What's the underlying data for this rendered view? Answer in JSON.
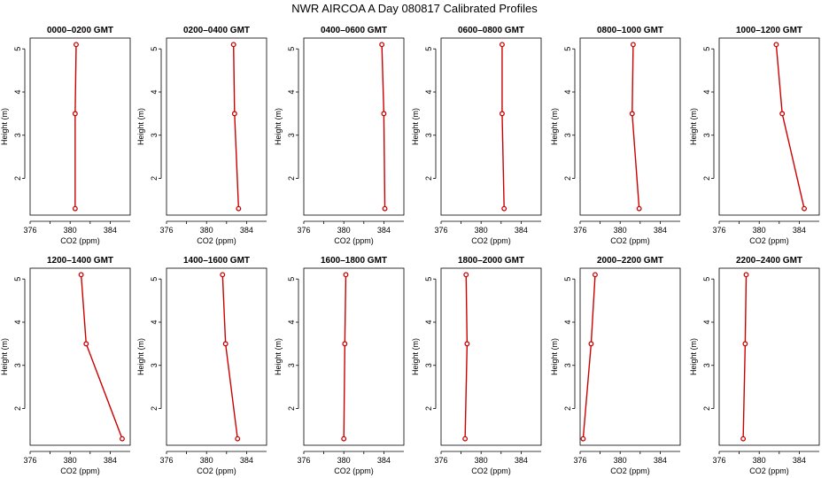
{
  "title": "NWR AIRCOA A  Day 080817  Calibrated Profiles",
  "colors": {
    "series": "#cc0000",
    "axis": "#000000"
  },
  "chart_data": [
    {
      "type": "line",
      "title": "0000–0200 GMT",
      "xlabel": "CO2 (ppm)",
      "ylabel": "Height (m)",
      "xlim": [
        376,
        386
      ],
      "ylim": [
        1.15,
        5.25
      ],
      "xticks": [
        376,
        380,
        384
      ],
      "yticks": [
        2,
        3,
        4,
        5
      ],
      "x": [
        380.6,
        380.5,
        380.5
      ],
      "y": [
        5.1,
        3.5,
        1.3
      ]
    },
    {
      "type": "line",
      "title": "0200–0400 GMT",
      "xlabel": "CO2 (ppm)",
      "ylabel": "Height (m)",
      "xlim": [
        376,
        386
      ],
      "ylim": [
        1.15,
        5.25
      ],
      "xticks": [
        376,
        380,
        384
      ],
      "yticks": [
        2,
        3,
        4,
        5
      ],
      "x": [
        382.7,
        382.8,
        383.2
      ],
      "y": [
        5.1,
        3.5,
        1.3
      ]
    },
    {
      "type": "line",
      "title": "0400–0600 GMT",
      "xlabel": "CO2 (ppm)",
      "ylabel": "Height (m)",
      "xlim": [
        376,
        386
      ],
      "ylim": [
        1.15,
        5.25
      ],
      "xticks": [
        376,
        380,
        384
      ],
      "yticks": [
        2,
        3,
        4,
        5
      ],
      "x": [
        383.8,
        384.0,
        384.1
      ],
      "y": [
        5.1,
        3.5,
        1.3
      ]
    },
    {
      "type": "line",
      "title": "0600–0800 GMT",
      "xlabel": "CO2 (ppm)",
      "ylabel": "Height (m)",
      "xlim": [
        376,
        386
      ],
      "ylim": [
        1.15,
        5.25
      ],
      "xticks": [
        376,
        380,
        384
      ],
      "yticks": [
        2,
        3,
        4,
        5
      ],
      "x": [
        382.1,
        382.1,
        382.3
      ],
      "y": [
        5.1,
        3.5,
        1.3
      ]
    },
    {
      "type": "line",
      "title": "0800–1000 GMT",
      "xlabel": "CO2 (ppm)",
      "ylabel": "Height (m)",
      "xlim": [
        376,
        386
      ],
      "ylim": [
        1.15,
        5.25
      ],
      "xticks": [
        376,
        380,
        384
      ],
      "yticks": [
        2,
        3,
        4,
        5
      ],
      "x": [
        381.3,
        381.2,
        381.9
      ],
      "y": [
        5.1,
        3.5,
        1.3
      ]
    },
    {
      "type": "line",
      "title": "1000–1200 GMT",
      "xlabel": "CO2 (ppm)",
      "ylabel": "Height (m)",
      "xlim": [
        376,
        386
      ],
      "ylim": [
        1.15,
        5.25
      ],
      "xticks": [
        376,
        380,
        384
      ],
      "yticks": [
        2,
        3,
        4,
        5
      ],
      "x": [
        381.7,
        382.3,
        384.5
      ],
      "y": [
        5.1,
        3.5,
        1.3
      ]
    },
    {
      "type": "line",
      "title": "1200–1400 GMT",
      "xlabel": "CO2 (ppm)",
      "ylabel": "Height (m)",
      "xlim": [
        376,
        386
      ],
      "ylim": [
        1.15,
        5.25
      ],
      "xticks": [
        376,
        380,
        384
      ],
      "yticks": [
        2,
        3,
        4,
        5
      ],
      "x": [
        381.1,
        381.6,
        385.2
      ],
      "y": [
        5.1,
        3.5,
        1.3
      ]
    },
    {
      "type": "line",
      "title": "1400–1600 GMT",
      "xlabel": "CO2 (ppm)",
      "ylabel": "Height (m)",
      "xlim": [
        376,
        386
      ],
      "ylim": [
        1.15,
        5.25
      ],
      "xticks": [
        376,
        380,
        384
      ],
      "yticks": [
        2,
        3,
        4,
        5
      ],
      "x": [
        381.6,
        381.9,
        383.1
      ],
      "y": [
        5.1,
        3.5,
        1.3
      ]
    },
    {
      "type": "line",
      "title": "1600–1800 GMT",
      "xlabel": "CO2 (ppm)",
      "ylabel": "Height (m)",
      "xlim": [
        376,
        386
      ],
      "ylim": [
        1.15,
        5.25
      ],
      "xticks": [
        376,
        380,
        384
      ],
      "yticks": [
        2,
        3,
        4,
        5
      ],
      "x": [
        380.2,
        380.1,
        380.0
      ],
      "y": [
        5.1,
        3.5,
        1.3
      ]
    },
    {
      "type": "line",
      "title": "1800–2000 GMT",
      "xlabel": "CO2 (ppm)",
      "ylabel": "Height (m)",
      "xlim": [
        376,
        386
      ],
      "ylim": [
        1.15,
        5.25
      ],
      "xticks": [
        376,
        380,
        384
      ],
      "yticks": [
        2,
        3,
        4,
        5
      ],
      "x": [
        378.5,
        378.6,
        378.4
      ],
      "y": [
        5.1,
        3.5,
        1.3
      ]
    },
    {
      "type": "line",
      "title": "2000–2200 GMT",
      "xlabel": "CO2 (ppm)",
      "ylabel": "Height (m)",
      "xlim": [
        376,
        386
      ],
      "ylim": [
        1.15,
        5.25
      ],
      "xticks": [
        376,
        380,
        384
      ],
      "yticks": [
        2,
        3,
        4,
        5
      ],
      "x": [
        377.5,
        377.1,
        376.3
      ],
      "y": [
        5.1,
        3.5,
        1.3
      ]
    },
    {
      "type": "line",
      "title": "2200–2400 GMT",
      "xlabel": "CO2 (ppm)",
      "ylabel": "Height (m)",
      "xlim": [
        376,
        386
      ],
      "ylim": [
        1.15,
        5.25
      ],
      "xticks": [
        376,
        380,
        384
      ],
      "yticks": [
        2,
        3,
        4,
        5
      ],
      "x": [
        378.7,
        378.6,
        378.4
      ],
      "y": [
        5.1,
        3.5,
        1.3
      ]
    }
  ]
}
